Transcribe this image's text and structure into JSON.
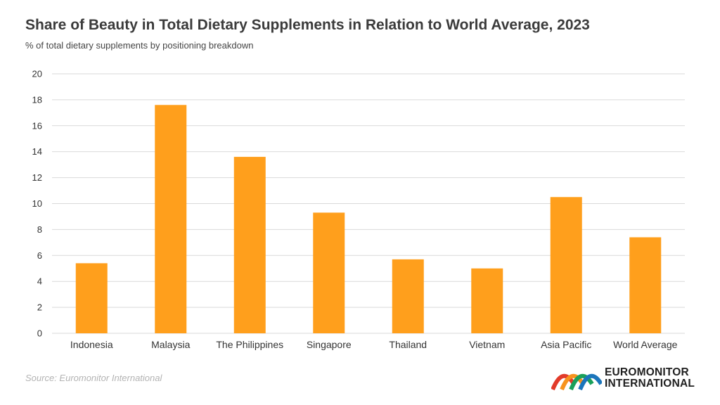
{
  "chart_data": {
    "type": "bar",
    "title": "Share of Beauty in Total Dietary Supplements in Relation to World Average, 2023",
    "subtitle": "% of total dietary supplements by positioning breakdown",
    "categories": [
      "Indonesia",
      "Malaysia",
      "The Philippines",
      "Singapore",
      "Thailand",
      "Vietnam",
      "Asia Pacific",
      "World Average"
    ],
    "values": [
      5.4,
      17.6,
      13.6,
      9.3,
      5.7,
      5.0,
      10.5,
      7.4
    ],
    "yticks": [
      0,
      2,
      4,
      6,
      8,
      10,
      12,
      14,
      16,
      18,
      20
    ],
    "ylim": [
      0,
      20
    ],
    "xlabel": "",
    "ylabel": "",
    "grid": true,
    "legend": "none",
    "bar_color": "#ff9f1c",
    "grid_color": "#d9d9d9"
  },
  "footer": {
    "source": "Source: Euromonitor International",
    "logo_line1": "EUROMONITOR",
    "logo_line2": "INTERNATIONAL"
  },
  "logo_colors": [
    "#e23b2a",
    "#f7931e",
    "#1aa05a",
    "#1b75bb"
  ]
}
